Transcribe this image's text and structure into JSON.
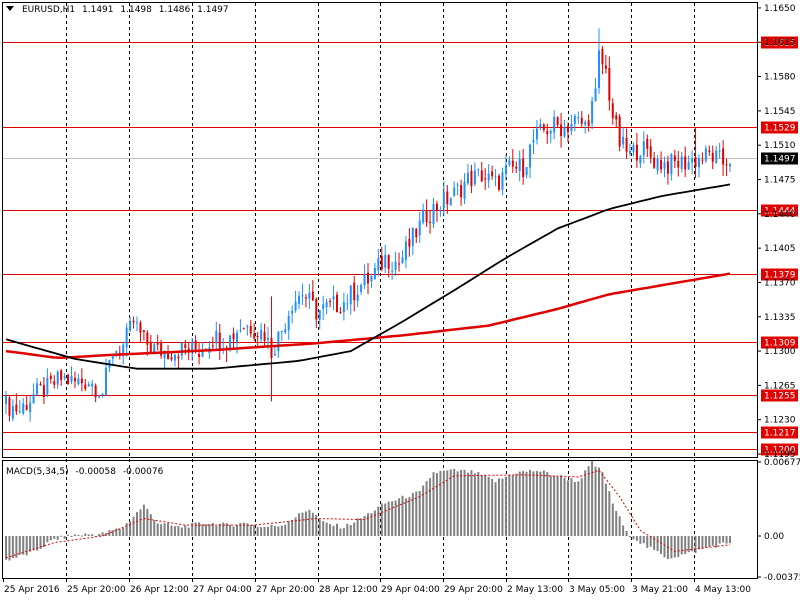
{
  "header": {
    "symbol": "EURUSD,H1",
    "open": "1.1491",
    "high": "1.1498",
    "low": "1.1486",
    "close": "1.1497"
  },
  "macd_header": {
    "name": "MACD(5,34,5)",
    "main": "-0.00058",
    "signal": "-0.00076"
  },
  "colors": {
    "bull": "#1e90ff",
    "bear": "#e00000",
    "level": "#e00000",
    "ma_fast": "#000000",
    "ma_slow": "#e00000",
    "macd_hist": "#808080",
    "macd_signal": "#e00000",
    "grid": "#000000"
  },
  "chart_data": [
    {
      "type": "candlestick",
      "title": "EURUSD,H1",
      "ylim": [
        1.1193,
        1.1654
      ],
      "y_ticks": [
        "1.1650",
        "1.1615",
        "1.1580",
        "1.1545",
        "1.1510",
        "1.1475",
        "1.1440",
        "1.1405",
        "1.1370",
        "1.1335",
        "1.1300",
        "1.1265",
        "1.1230",
        "1.1195"
      ],
      "x_ticks": [
        "25 Apr 2016",
        "25 Apr 20:00",
        "26 Apr 12:00",
        "27 Apr 04:00",
        "27 Apr 20:00",
        "28 Apr 12:00",
        "29 Apr 04:00",
        "29 Apr 20:00",
        "2 May 13:00",
        "3 May 05:00",
        "3 May 21:00",
        "4 May 13:00"
      ],
      "horizontal_levels": [
        "1.1615",
        "1.1529",
        "1.1444",
        "1.1379",
        "1.1309",
        "1.1255",
        "1.1217",
        "1.1200"
      ],
      "current_price": "1.1497",
      "close_path": [
        [
          0,
          1.1245
        ],
        [
          4,
          1.124
        ],
        [
          8,
          1.1255
        ],
        [
          12,
          1.1262
        ],
        [
          16,
          1.1272
        ],
        [
          20,
          1.1268
        ],
        [
          24,
          1.127
        ],
        [
          28,
          1.1258
        ],
        [
          31,
          1.13
        ],
        [
          34,
          1.1305
        ],
        [
          37,
          1.133
        ],
        [
          40,
          1.131
        ],
        [
          44,
          1.13
        ],
        [
          48,
          1.13
        ],
        [
          52,
          1.1302
        ],
        [
          56,
          1.13
        ],
        [
          60,
          1.1315
        ],
        [
          64,
          1.131
        ],
        [
          68,
          1.1325
        ],
        [
          71,
          1.1325
        ],
        [
          75,
          1.1318
        ],
        [
          77,
          1.13
        ],
        [
          80,
          1.1322
        ],
        [
          83,
          1.135
        ],
        [
          86,
          1.136
        ],
        [
          90,
          1.134
        ],
        [
          94,
          1.1345
        ],
        [
          98,
          1.135
        ],
        [
          102,
          1.1365
        ],
        [
          106,
          1.1375
        ],
        [
          110,
          1.1395
        ],
        [
          114,
          1.139
        ],
        [
          118,
          1.1415
        ],
        [
          122,
          1.144
        ],
        [
          126,
          1.145
        ],
        [
          130,
          1.146
        ],
        [
          134,
          1.1475
        ],
        [
          138,
          1.148
        ],
        [
          142,
          1.147
        ],
        [
          146,
          1.1485
        ],
        [
          150,
          1.1488
        ],
        [
          153,
          1.1515
        ],
        [
          156,
          1.1525
        ],
        [
          159,
          1.153
        ],
        [
          162,
          1.1528
        ],
        [
          165,
          1.1535
        ],
        [
          168,
          1.153
        ],
        [
          171,
          1.156
        ],
        [
          172,
          1.16
        ],
        [
          174,
          1.1585
        ],
        [
          176,
          1.154
        ],
        [
          178,
          1.1512
        ],
        [
          181,
          1.15
        ],
        [
          184,
          1.1508
        ],
        [
          188,
          1.1495
        ],
        [
          192,
          1.149
        ],
        [
          196,
          1.1492
        ],
        [
          200,
          1.1495
        ],
        [
          204,
          1.15
        ],
        [
          208,
          1.1492
        ],
        [
          210,
          1.1497
        ]
      ],
      "ma_fast_path": [
        [
          0,
          1.1312
        ],
        [
          20,
          1.1292
        ],
        [
          38,
          1.1282
        ],
        [
          60,
          1.1282
        ],
        [
          85,
          1.129
        ],
        [
          100,
          1.13
        ],
        [
          115,
          1.133
        ],
        [
          130,
          1.1362
        ],
        [
          145,
          1.1395
        ],
        [
          160,
          1.1425
        ],
        [
          175,
          1.1445
        ],
        [
          190,
          1.1458
        ],
        [
          210,
          1.147
        ]
      ],
      "ma_slow_path": [
        [
          0,
          1.13
        ],
        [
          15,
          1.1293
        ],
        [
          30,
          1.1296
        ],
        [
          60,
          1.1301
        ],
        [
          90,
          1.1308
        ],
        [
          115,
          1.1316
        ],
        [
          140,
          1.1326
        ],
        [
          160,
          1.1343
        ],
        [
          175,
          1.1358
        ],
        [
          190,
          1.1367
        ],
        [
          210,
          1.1379
        ]
      ]
    },
    {
      "type": "bar",
      "title": "MACD(5,34,5)",
      "ylim": [
        -0.00375,
        0.00677
      ],
      "y_ticks": [
        "0.00677",
        "0.00",
        "-0.00375"
      ],
      "hist_path": [
        [
          0,
          -0.0022
        ],
        [
          8,
          -0.0015
        ],
        [
          14,
          -0.0003
        ],
        [
          20,
          0.0001
        ],
        [
          28,
          0.0002
        ],
        [
          34,
          0.0008
        ],
        [
          40,
          0.0028
        ],
        [
          44,
          0.0012
        ],
        [
          50,
          0.0008
        ],
        [
          58,
          0.0012
        ],
        [
          64,
          0.001
        ],
        [
          70,
          0.0012
        ],
        [
          74,
          0.0008
        ],
        [
          80,
          0.001
        ],
        [
          88,
          0.0025
        ],
        [
          92,
          0.0012
        ],
        [
          98,
          0.0008
        ],
        [
          104,
          0.0018
        ],
        [
          110,
          0.003
        ],
        [
          116,
          0.0036
        ],
        [
          120,
          0.004
        ],
        [
          124,
          0.0058
        ],
        [
          130,
          0.006
        ],
        [
          136,
          0.0058
        ],
        [
          142,
          0.005
        ],
        [
          148,
          0.0058
        ],
        [
          154,
          0.006
        ],
        [
          160,
          0.0055
        ],
        [
          166,
          0.005
        ],
        [
          170,
          0.0067
        ],
        [
          173,
          0.0058
        ],
        [
          176,
          0.003
        ],
        [
          180,
          0.0003
        ],
        [
          186,
          -0.001
        ],
        [
          192,
          -0.002
        ],
        [
          198,
          -0.0016
        ],
        [
          204,
          -0.001
        ],
        [
          210,
          -0.0006
        ]
      ],
      "signal_path": [
        [
          0,
          -0.002
        ],
        [
          14,
          -0.0006
        ],
        [
          28,
          0.0
        ],
        [
          40,
          0.0016
        ],
        [
          52,
          0.001
        ],
        [
          72,
          0.001
        ],
        [
          90,
          0.0016
        ],
        [
          104,
          0.0015
        ],
        [
          120,
          0.0036
        ],
        [
          130,
          0.0055
        ],
        [
          150,
          0.0056
        ],
        [
          166,
          0.0054
        ],
        [
          172,
          0.006
        ],
        [
          178,
          0.0036
        ],
        [
          184,
          0.0005
        ],
        [
          194,
          -0.0014
        ],
        [
          210,
          -0.0008
        ]
      ]
    }
  ]
}
